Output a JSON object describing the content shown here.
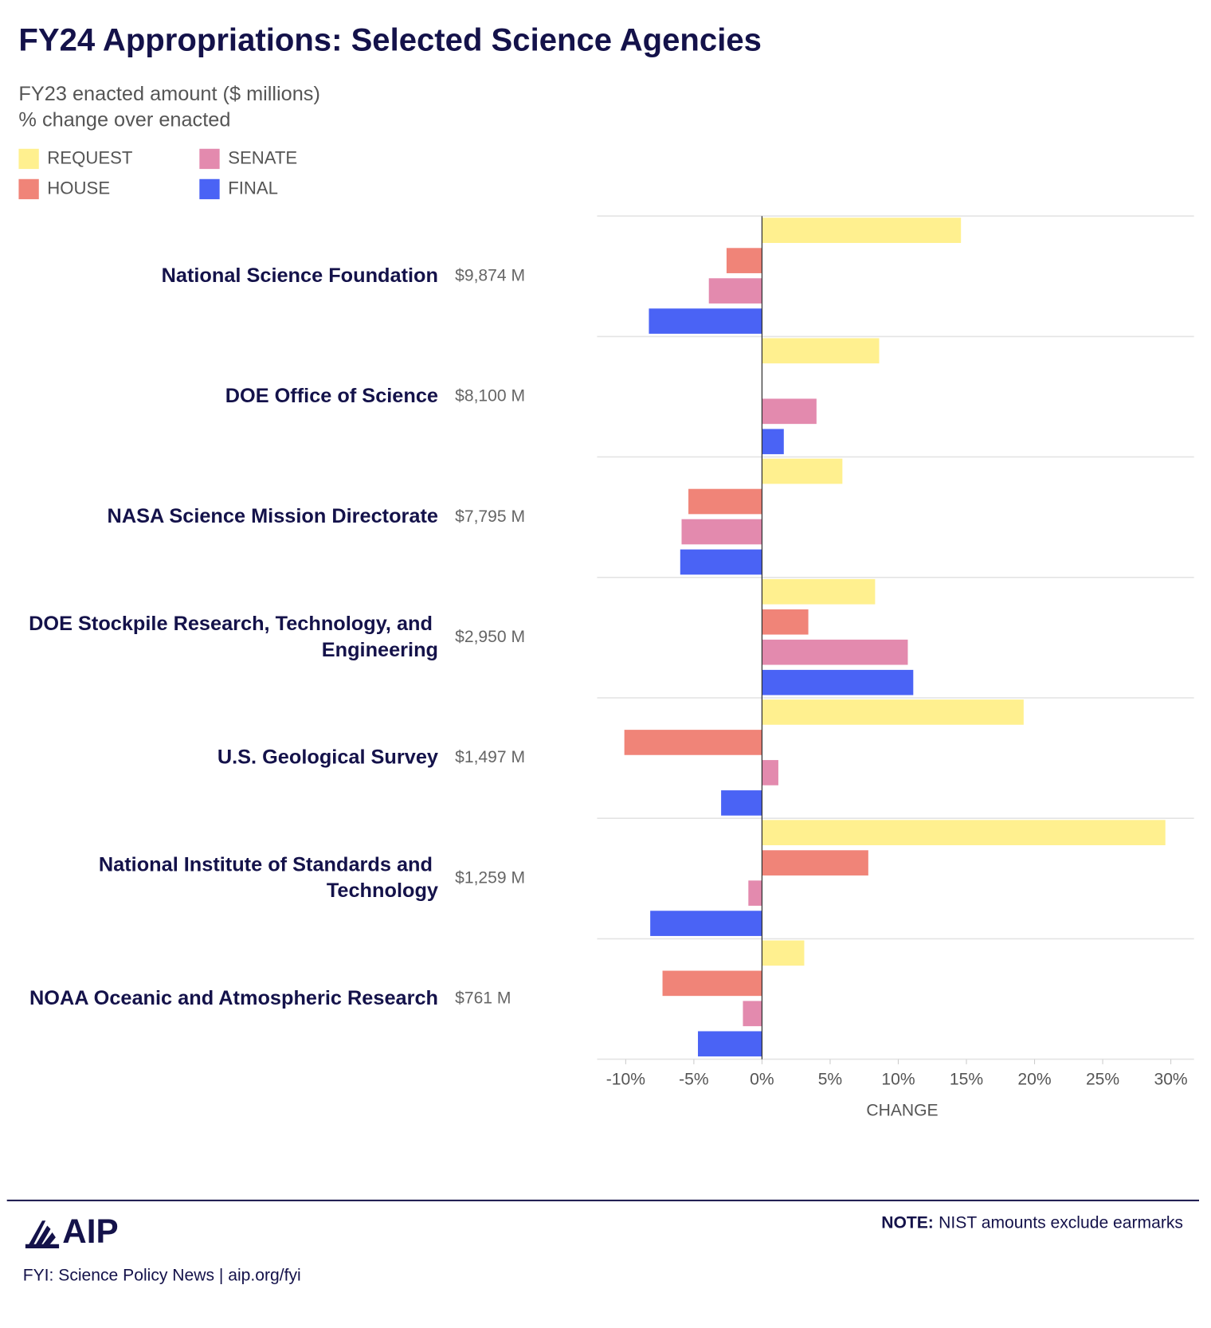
{
  "chart_data": {
    "type": "hbar",
    "title": "FY24 Appropriations: Selected Science Agencies",
    "subtitle": [
      "FY23 enacted amount ($ millions)",
      "% change over enacted"
    ],
    "categories": [
      "National Science Foundation",
      "DOE Office of Science",
      "NASA Science Mission Directorate",
      "DOE Stockpile Research, Technology, and Engineering",
      "U.S. Geological Survey",
      "National Institute of Standards and Technology",
      "NOAA Oceanic and Atmospheric Research"
    ],
    "amounts": [
      "$9,874 M",
      "$8,100 M",
      "$7,795 M",
      "$2,950 M",
      "$1,497 M",
      "$1,259 M",
      "$761 M"
    ],
    "series": [
      {
        "name": "REQUEST",
        "color": "#fff08f",
        "values": [
          14.6,
          8.6,
          5.9,
          8.3,
          19.2,
          29.6,
          3.1
        ]
      },
      {
        "name": "HOUSE",
        "color": "#f08478",
        "values": [
          -2.6,
          0,
          -5.4,
          3.4,
          -10.1,
          7.8,
          -7.3
        ]
      },
      {
        "name": "SENATE",
        "color": "#e38aae",
        "values": [
          -3.9,
          4.0,
          -5.9,
          10.7,
          1.2,
          -1.0,
          -1.4
        ]
      },
      {
        "name": "FINAL",
        "color": "#4a63f5",
        "values": [
          -8.3,
          1.6,
          -6.0,
          11.1,
          -3.0,
          -8.2,
          -4.7
        ]
      }
    ],
    "xlim": [
      -12.1,
      31.7
    ],
    "xticks": [
      {
        "value": -10,
        "label": "-10%"
      },
      {
        "value": -5,
        "label": "-5%"
      },
      {
        "value": 0,
        "label": "0%"
      },
      {
        "value": 5,
        "label": "5%"
      },
      {
        "value": 10,
        "label": "10%"
      },
      {
        "value": 15,
        "label": "15%"
      },
      {
        "value": 20,
        "label": "20%"
      },
      {
        "value": 25,
        "label": "25%"
      },
      {
        "value": 30,
        "label": "30%"
      }
    ],
    "xlabel": "CHANGE",
    "grid": true
  },
  "footer": {
    "logo": "AIP",
    "source": "FYI: Science Policy News | aip.org/fyi",
    "note_label": "NOTE:",
    "note": "NIST amounts exclude earmarks"
  }
}
